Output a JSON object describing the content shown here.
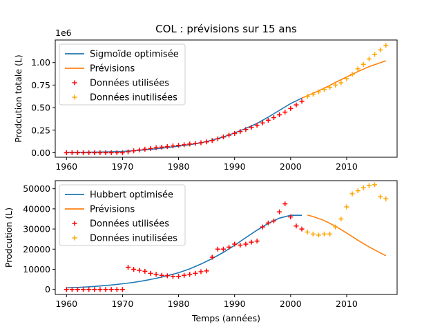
{
  "figure": {
    "title": "COL : prévisions sur 15 ans"
  },
  "chart_data": [
    {
      "type": "line",
      "title": "",
      "xlabel": "",
      "ylabel": "Prodcution totale (L)",
      "offset_text": "1e6",
      "xlim": [
        1958,
        2019
      ],
      "ylim": [
        -50000,
        1250000
      ],
      "xticks": [
        1960,
        1970,
        1980,
        1990,
        2000,
        2010
      ],
      "yticks": [
        0,
        250000,
        500000,
        750000,
        1000000
      ],
      "ytick_labels": [
        "0.00",
        "0.25",
        "0.50",
        "0.75",
        "1.00"
      ],
      "legend": {
        "position": "top-left",
        "entries": [
          "Sigmoïde optimisée",
          "Prévisions",
          "Données utilisées",
          "Données inutilisées"
        ]
      },
      "series": [
        {
          "name": "Sigmoïde optimisée",
          "kind": "line",
          "color": "#1f77b4",
          "x": [
            1960,
            1962,
            1964,
            1966,
            1968,
            1970,
            1972,
            1974,
            1976,
            1978,
            1980,
            1982,
            1984,
            1986,
            1988,
            1990,
            1992,
            1994,
            1996,
            1998,
            2000,
            2002
          ],
          "y": [
            3000,
            4000,
            6000,
            8000,
            11000,
            15000,
            22000,
            32000,
            43000,
            57000,
            72000,
            89000,
            110000,
            140000,
            175000,
            220000,
            270000,
            325000,
            395000,
            470000,
            545000,
            605000
          ]
        },
        {
          "name": "Prévisions",
          "kind": "line",
          "color": "#ff7f0e",
          "x": [
            2002,
            2004,
            2006,
            2008,
            2010,
            2012,
            2014,
            2017
          ],
          "y": [
            605000,
            660000,
            715000,
            780000,
            840000,
            900000,
            955000,
            1020000
          ]
        },
        {
          "name": "Données utilisées",
          "kind": "marker",
          "color": "#ff0000",
          "x": [
            1960,
            1961,
            1962,
            1963,
            1964,
            1965,
            1966,
            1967,
            1968,
            1969,
            1970,
            1971,
            1972,
            1973,
            1974,
            1975,
            1976,
            1977,
            1978,
            1979,
            1980,
            1981,
            1982,
            1983,
            1984,
            1985,
            1986,
            1987,
            1988,
            1989,
            1990,
            1991,
            1992,
            1993,
            1994,
            1995,
            1996,
            1997,
            1998,
            1999,
            2000,
            2001,
            2002
          ],
          "y": [
            0,
            0,
            0,
            0,
            0,
            0,
            0,
            0,
            0,
            0,
            0,
            10000,
            21000,
            30000,
            39000,
            47000,
            55000,
            62000,
            68000,
            75000,
            82000,
            89000,
            96000,
            103000,
            111000,
            120000,
            135000,
            155000,
            175000,
            195000,
            215000,
            235000,
            258000,
            282000,
            305000,
            330000,
            360000,
            390000,
            420000,
            450000,
            490000,
            530000,
            570000
          ]
        },
        {
          "name": "Données inutilisées",
          "kind": "marker",
          "color": "#ffa500",
          "x": [
            2003,
            2004,
            2005,
            2006,
            2007,
            2008,
            2009,
            2010,
            2011,
            2012,
            2013,
            2014,
            2015,
            2016,
            2017
          ],
          "y": [
            625000,
            650000,
            675000,
            700000,
            725000,
            750000,
            775000,
            820000,
            870000,
            930000,
            980000,
            1040000,
            1090000,
            1140000,
            1190000
          ]
        }
      ]
    },
    {
      "type": "line",
      "title": "",
      "xlabel": "Temps (années)",
      "ylabel": "Prodcution (L)",
      "xlim": [
        1958,
        2019
      ],
      "ylim": [
        -2500,
        54000
      ],
      "xticks": [
        1960,
        1970,
        1980,
        1990,
        2000,
        2010
      ],
      "yticks": [
        0,
        10000,
        20000,
        30000,
        40000,
        50000
      ],
      "ytick_labels": [
        "0",
        "10000",
        "20000",
        "30000",
        "40000",
        "50000"
      ],
      "legend": {
        "position": "top-left",
        "entries": [
          "Hubbert optimisée",
          "Prévisions",
          "Données utilisées",
          "Données inutilisées"
        ]
      },
      "series": [
        {
          "name": "Hubbert optimisée",
          "kind": "line",
          "color": "#1f77b4",
          "x": [
            1960,
            1962,
            1964,
            1966,
            1968,
            1970,
            1972,
            1974,
            1976,
            1978,
            1980,
            1982,
            1984,
            1986,
            1988,
            1990,
            1992,
            1994,
            1996,
            1998,
            2000,
            2002
          ],
          "y": [
            800,
            1000,
            1300,
            1700,
            2200,
            2800,
            3500,
            4400,
            5500,
            6800,
            8300,
            10200,
            12600,
            15300,
            18400,
            21900,
            25700,
            29400,
            32800,
            35400,
            36800,
            36800
          ]
        },
        {
          "name": "Prévisions",
          "kind": "line",
          "color": "#ff7f0e",
          "x": [
            2003,
            2004,
            2006,
            2008,
            2010,
            2012,
            2014,
            2017
          ],
          "y": [
            36900,
            36200,
            34200,
            31400,
            28000,
            24400,
            21100,
            16700
          ]
        },
        {
          "name": "Données utilisées",
          "kind": "marker",
          "color": "#ff0000",
          "x": [
            1960,
            1961,
            1962,
            1963,
            1964,
            1965,
            1966,
            1967,
            1968,
            1969,
            1970,
            1971,
            1972,
            1973,
            1974,
            1975,
            1976,
            1977,
            1978,
            1979,
            1980,
            1981,
            1982,
            1983,
            1984,
            1985,
            1986,
            1987,
            1988,
            1989,
            1990,
            1991,
            1992,
            1993,
            1994,
            1995,
            1996,
            1997,
            1998,
            1999,
            2000,
            2001,
            2002
          ],
          "y": [
            0,
            0,
            0,
            0,
            0,
            0,
            0,
            0,
            0,
            0,
            0,
            11000,
            10000,
            9500,
            9000,
            8000,
            7500,
            7000,
            6800,
            6500,
            6500,
            7000,
            7500,
            8000,
            8800,
            9200,
            16000,
            20000,
            20000,
            21000,
            22500,
            22000,
            22500,
            23500,
            24000,
            31000,
            33000,
            34000,
            38500,
            42500,
            36000,
            31500,
            30000
          ]
        },
        {
          "name": "Données inutilisées",
          "kind": "marker",
          "color": "#ffa500",
          "x": [
            2003,
            2004,
            2005,
            2006,
            2007,
            2008,
            2009,
            2010,
            2011,
            2012,
            2013,
            2014,
            2015,
            2016,
            2017
          ],
          "y": [
            28500,
            27500,
            27000,
            27500,
            27500,
            31000,
            35000,
            41000,
            47500,
            49000,
            50500,
            51500,
            52000,
            46000,
            45000
          ]
        }
      ]
    }
  ]
}
